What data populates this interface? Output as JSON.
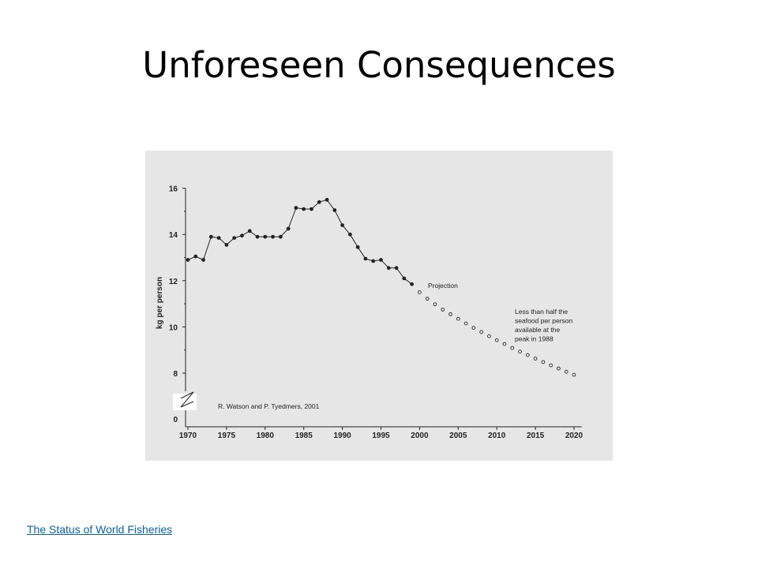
{
  "slide": {
    "title": "Unforeseen Consequences",
    "link_text": "The Status of World Fisheries"
  },
  "chart_data": {
    "type": "line",
    "title": "",
    "xlabel": "",
    "ylabel": "kg per person",
    "xlim": [
      1970,
      2021
    ],
    "ylim": [
      0,
      16
    ],
    "y_axis_break": [
      0,
      6
    ],
    "x_ticks": [
      1970,
      1975,
      1980,
      1985,
      1990,
      1995,
      2000,
      2005,
      2010,
      2015,
      2020
    ],
    "y_ticks": [
      0,
      8,
      10,
      12,
      14,
      16
    ],
    "grid": false,
    "series": [
      {
        "style": "solid-line-filled-dots",
        "x": [
          1970,
          1971,
          1972,
          1973,
          1974,
          1975,
          1976,
          1977,
          1978,
          1979,
          1980,
          1981,
          1982,
          1983,
          1984,
          1985,
          1986,
          1987,
          1988,
          1989,
          1990,
          1991,
          1992,
          1993,
          1994,
          1995,
          1996,
          1997,
          1998,
          1999
        ],
        "values": [
          12.9,
          13.05,
          12.9,
          13.9,
          13.85,
          13.55,
          13.85,
          13.95,
          14.15,
          13.9,
          13.9,
          13.9,
          13.9,
          14.25,
          15.15,
          15.1,
          15.1,
          15.4,
          15.5,
          15.05,
          14.4,
          14.0,
          13.45,
          12.95,
          12.85,
          12.9,
          12.55,
          12.55,
          12.1,
          11.85
        ]
      },
      {
        "name": "Projection",
        "style": "open-dots",
        "x": [
          2000,
          2001,
          2002,
          2003,
          2004,
          2005,
          2006,
          2007,
          2008,
          2009,
          2010,
          2011,
          2012,
          2013,
          2014,
          2015,
          2016,
          2017,
          2018,
          2019,
          2020
        ],
        "values": [
          11.5,
          11.22,
          10.98,
          10.75,
          10.55,
          10.35,
          10.15,
          9.96,
          9.78,
          9.6,
          9.43,
          9.26,
          9.09,
          8.93,
          8.78,
          8.63,
          8.48,
          8.34,
          8.2,
          8.06,
          7.93
        ]
      }
    ],
    "annotations": {
      "projection_label": "Projection",
      "note_lines": [
        "Less than half the",
        "seafood per person",
        "available at the",
        "peak in 1988"
      ],
      "credit": "R. Watson and P. Tyedmers, 2001"
    },
    "colors": {
      "panel_bg": "#e6e6e6",
      "ink": "#222222",
      "link": "#0563c1"
    }
  }
}
